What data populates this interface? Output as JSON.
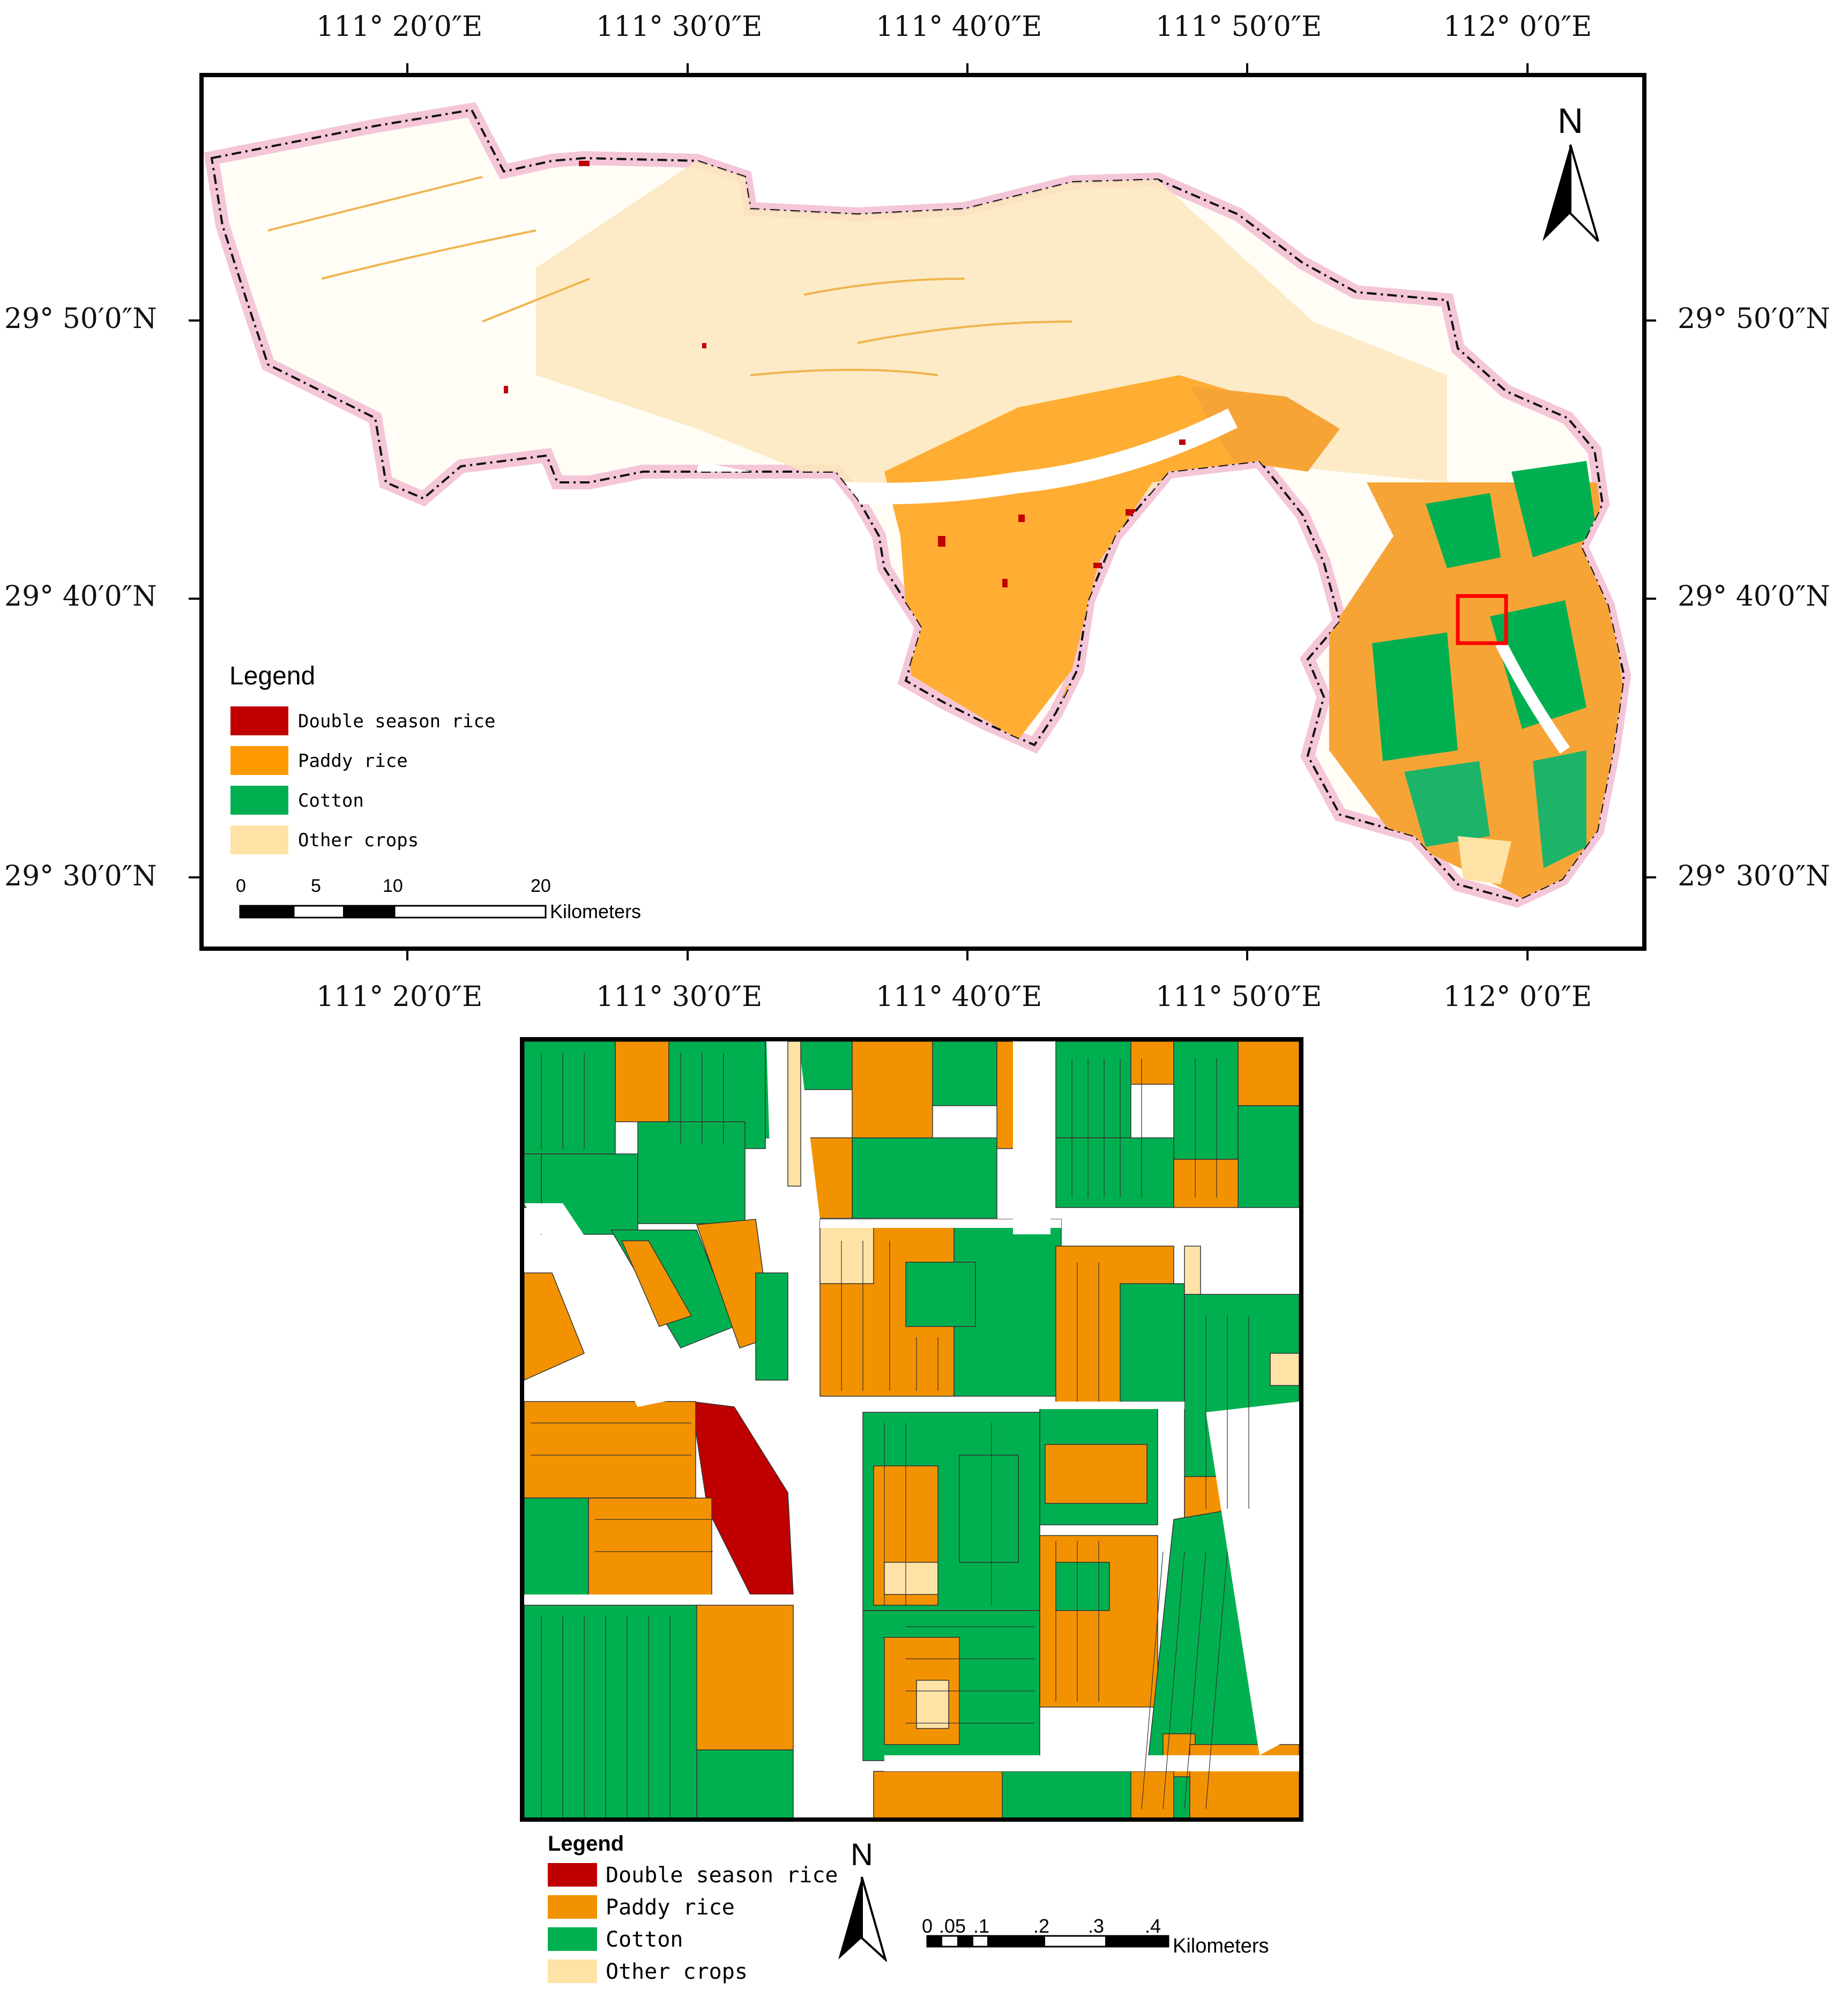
{
  "overview_map": {
    "top_axis_labels": [
      "111° 20′0″E",
      "111° 30′0″E",
      "111° 40′0″E",
      "111° 50′0″E",
      "112° 0′0″E"
    ],
    "bottom_axis_labels": [
      "111° 20′0″E",
      "111° 30′0″E",
      "111° 40′0″E",
      "111° 50′0″E",
      "112° 0′0″E"
    ],
    "left_axis_labels": [
      "29° 50′0″N",
      "29° 40′0″N",
      "29° 30′0″N"
    ],
    "right_axis_labels": [
      "29° 50′0″N",
      "29° 40′0″N",
      "29° 30′0″N"
    ],
    "north_label": "N",
    "legend": {
      "title": "Legend",
      "items": [
        {
          "label": "Double season rice",
          "color": "#c00000"
        },
        {
          "label": "Paddy rice",
          "color": "#ff9900"
        },
        {
          "label": "Cotton",
          "color": "#00b050"
        },
        {
          "label": "Other crops",
          "color": "#ffe3a6"
        }
      ]
    },
    "scale_bar": {
      "ticks": [
        "0",
        "5",
        "10",
        "20"
      ],
      "unit": "Kilometers"
    },
    "boundary_color": "#f4c6d8",
    "highlight_box_color": "#ff0000"
  },
  "detail_map": {
    "north_label": "N",
    "legend": {
      "title": "Legend",
      "items": [
        {
          "label": "Double season rice",
          "color": "#c00000"
        },
        {
          "label": "Paddy rice",
          "color": "#f39200"
        },
        {
          "label": "Cotton",
          "color": "#00b050"
        },
        {
          "label": "Other crops",
          "color": "#ffe3a6"
        }
      ]
    },
    "scale_bar": {
      "ticks": [
        "0",
        ".05",
        ".1",
        ".2",
        ".3",
        ".4"
      ],
      "unit": "Kilometers"
    }
  }
}
